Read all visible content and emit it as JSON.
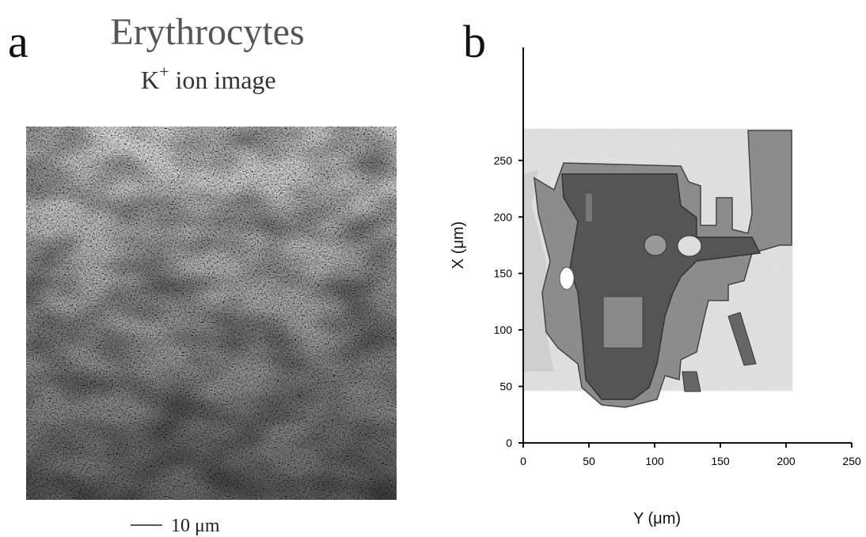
{
  "panel_a": {
    "label": "a",
    "title": "Erythrocytes",
    "subtitle_main": "K",
    "subtitle_sup": "+",
    "subtitle_rest": " ion image",
    "scale_bar": "10 μm"
  },
  "chart_data": {
    "type": "contour",
    "label": "b",
    "xlabel": "Y (μm)",
    "ylabel": "X (μm)",
    "xlim": [
      0,
      250
    ],
    "ylim": [
      0,
      350
    ],
    "xticks": [
      0,
      50,
      100,
      150,
      200,
      250
    ],
    "yticks": [
      0,
      50,
      100,
      150,
      200,
      250
    ],
    "map_extent_x": [
      0,
      205
    ],
    "map_extent_y": [
      46,
      278
    ]
  }
}
